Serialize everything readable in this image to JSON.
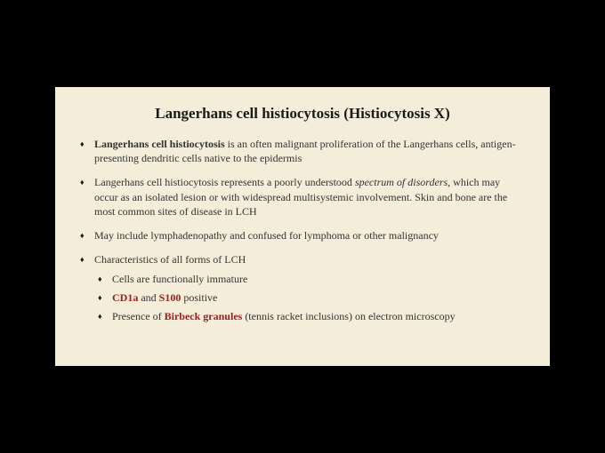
{
  "slide": {
    "background_color": "#f3edd9",
    "outer_background": "#000000",
    "title": "Langerhans cell histiocytosis (Histiocytosis X)",
    "title_fontsize": 17,
    "body_fontsize": 12,
    "text_color": "#333333",
    "highlight_color": "#9a1f1f",
    "bullets": [
      {
        "lead_bold": "Langerhans cell histiocytosis",
        "rest": " is an often malignant proliferation of the Langerhans cells, antigen-presenting dendritic cells native to the epidermis"
      },
      {
        "pre": "Langerhans cell histiocytosis represents a poorly understood ",
        "italic": "spectrum of disorders",
        "post": ", which may occur as an isolated lesion or with widespread multisystemic involvement. Skin and bone are the most common sites of disease in LCH"
      },
      {
        "text": "May include lymphadenopathy and confused for lymphoma or other malignancy"
      },
      {
        "text": "Characteristics of all forms of LCH",
        "sub": [
          {
            "text": "Cells are functionally immature"
          },
          {
            "red1": "CD1a",
            "mid": " and ",
            "red2": "S100",
            "post": " positive"
          },
          {
            "pre": "Presence of ",
            "red": "Birbeck granules",
            "post": " (tennis racket inclusions) on electron microscopy"
          }
        ]
      }
    ]
  }
}
